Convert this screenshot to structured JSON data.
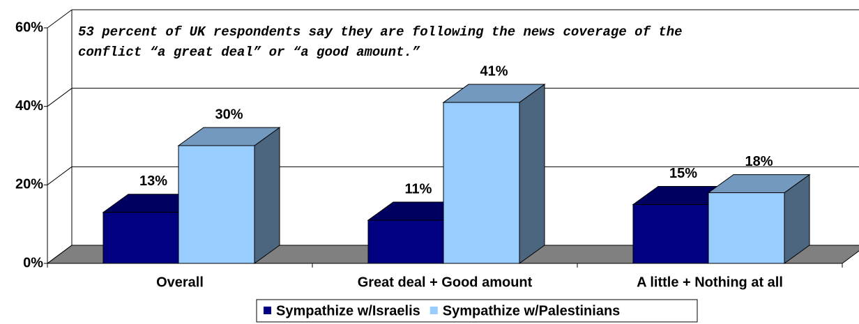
{
  "chart_data": {
    "type": "bar3d",
    "annotation": [
      "53 percent of UK respondents say they are following the news coverage of the",
      "conflict “a great deal” or “a good amount.”"
    ],
    "categories": [
      "Overall",
      "Great deal + Good amount",
      "A little + Nothing at all"
    ],
    "series": [
      {
        "name": "Sympathize w/Israelis",
        "color": "#000080",
        "values": [
          13,
          11,
          15
        ],
        "value_labels": [
          "13%",
          "11%",
          "15%"
        ]
      },
      {
        "name": "Sympathize w/Palestinians",
        "color": "#99ccff",
        "values": [
          30,
          41,
          18
        ],
        "value_labels": [
          "30%",
          "41%",
          "18%"
        ]
      }
    ],
    "ylim": [
      0,
      60
    ],
    "yticks": [
      {
        "value": 0,
        "label": "0%"
      },
      {
        "value": 20,
        "label": "20%"
      },
      {
        "value": 40,
        "label": "40%"
      },
      {
        "value": 60,
        "label": "60%"
      }
    ],
    "grid": true,
    "legend": "bottom"
  }
}
